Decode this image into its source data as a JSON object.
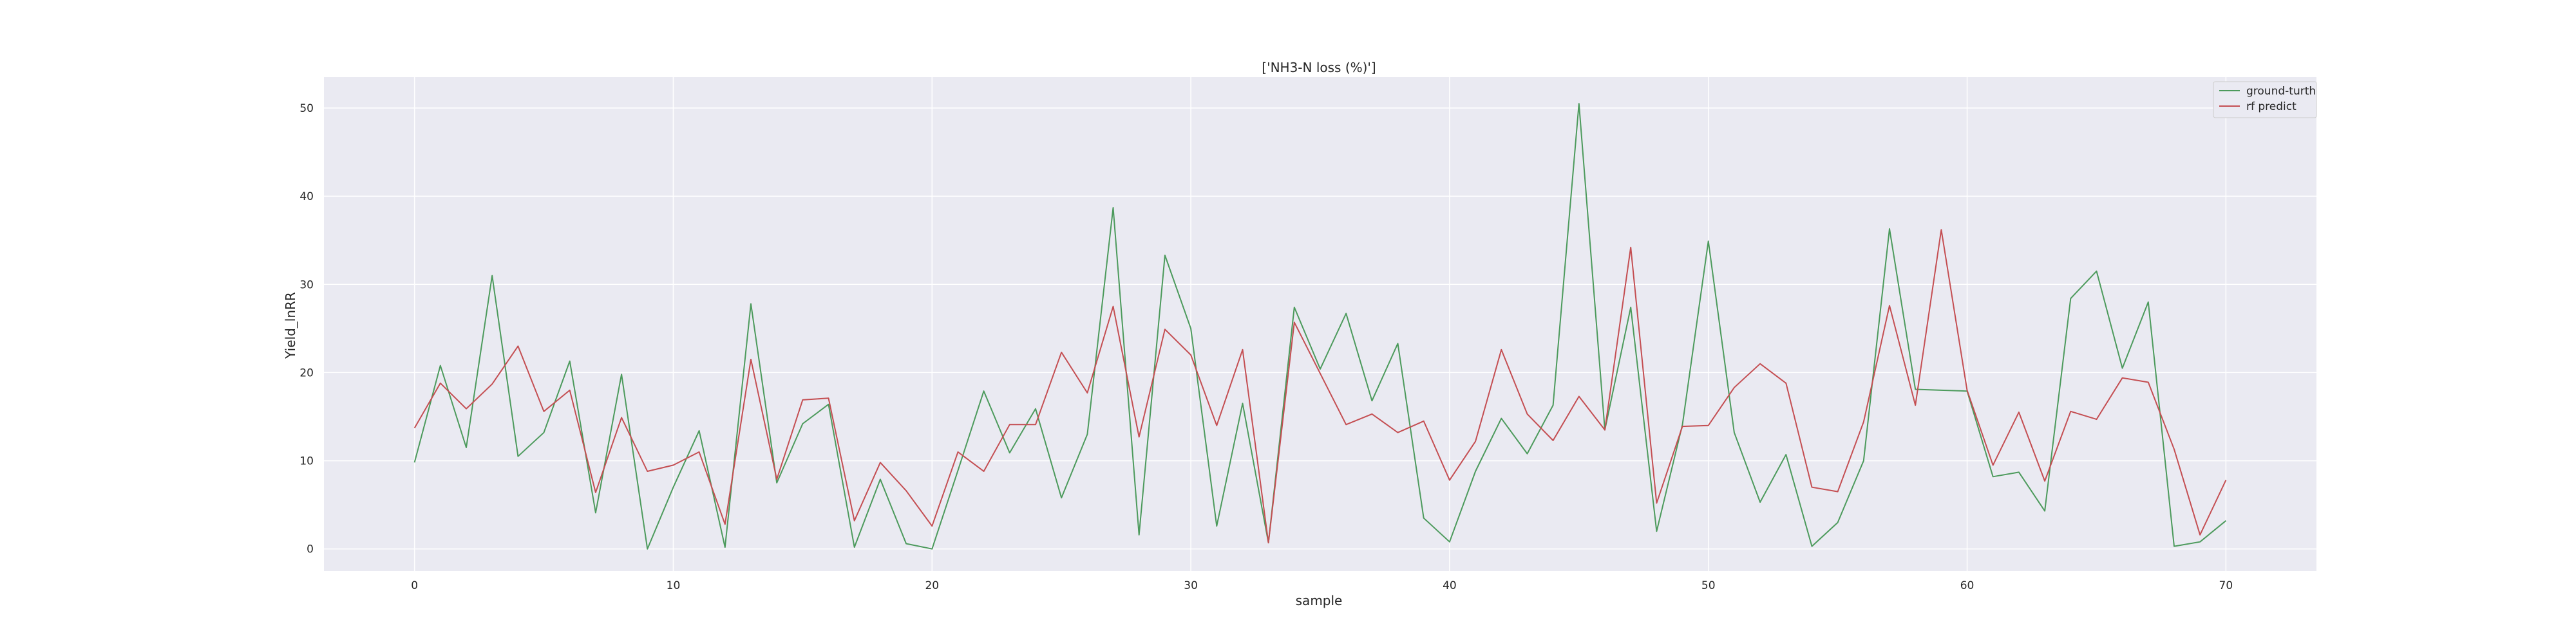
{
  "chart_data": {
    "type": "line",
    "title": "['NH3-N loss (%)']",
    "xlabel": "sample",
    "ylabel": "Yield_lnRR",
    "xlim": [
      -3.5,
      73.5
    ],
    "ylim": [
      -2.5,
      53.5
    ],
    "x_ticks": [
      0,
      10,
      20,
      30,
      40,
      50,
      60,
      70
    ],
    "y_ticks": [
      0,
      10,
      20,
      30,
      40,
      50
    ],
    "grid": true,
    "legend_position": "top-right",
    "x": [
      0,
      1,
      2,
      3,
      4,
      5,
      6,
      7,
      8,
      9,
      10,
      11,
      12,
      13,
      14,
      15,
      16,
      17,
      18,
      19,
      20,
      21,
      22,
      23,
      24,
      25,
      26,
      27,
      28,
      29,
      30,
      31,
      32,
      33,
      34,
      35,
      36,
      37,
      38,
      39,
      40,
      41,
      42,
      43,
      44,
      45,
      46,
      47,
      48,
      49,
      50,
      51,
      52,
      53,
      54,
      55,
      56,
      57,
      58,
      59,
      60,
      61,
      62,
      63,
      64,
      65,
      66,
      67,
      68,
      69,
      70
    ],
    "series": [
      {
        "name": "ground-turth",
        "color": "#4c9a5c",
        "values": [
          9.8,
          20.8,
          11.5,
          31.0,
          10.5,
          13.2,
          21.3,
          4.1,
          19.8,
          0.0,
          7.0,
          13.4,
          0.2,
          27.8,
          7.5,
          14.2,
          16.4,
          0.2,
          7.9,
          0.6,
          0.0,
          8.9,
          17.9,
          10.9,
          15.9,
          5.8,
          13.0,
          38.7,
          1.6,
          33.3,
          25.0,
          2.6,
          16.5,
          0.7,
          27.4,
          20.4,
          26.7,
          16.8,
          23.3,
          3.5,
          0.8,
          8.8,
          14.8,
          10.8,
          16.3,
          50.5,
          13.5,
          27.4,
          2.0,
          14.1,
          34.9,
          13.2,
          5.3,
          10.7,
          0.3,
          3.0,
          10.0,
          36.3,
          18.1,
          18.0,
          17.9,
          8.2,
          8.7,
          4.3,
          28.4,
          31.5,
          20.5,
          28.0,
          0.3,
          0.8,
          3.2
        ]
      },
      {
        "name": "rf predict",
        "color": "#c44e52",
        "values": [
          13.7,
          18.8,
          15.9,
          18.7,
          23.0,
          15.6,
          18.0,
          6.4,
          14.9,
          8.8,
          9.5,
          11.0,
          2.8,
          21.5,
          7.9,
          16.9,
          17.1,
          3.2,
          9.8,
          6.6,
          2.6,
          11.0,
          8.8,
          14.1,
          14.1,
          22.3,
          17.7,
          27.5,
          12.7,
          24.9,
          22.0,
          14.0,
          22.6,
          0.7,
          25.7,
          19.9,
          14.1,
          15.3,
          13.2,
          14.5,
          7.8,
          12.2,
          22.6,
          15.3,
          12.3,
          17.3,
          13.5,
          34.2,
          5.2,
          13.9,
          14.0,
          18.3,
          21.0,
          18.8,
          7.0,
          6.5,
          14.4,
          27.6,
          16.3,
          36.2,
          18.0,
          9.5,
          15.5,
          7.7,
          15.6,
          14.7,
          19.4,
          18.9,
          11.3,
          1.6,
          7.8
        ]
      }
    ]
  }
}
